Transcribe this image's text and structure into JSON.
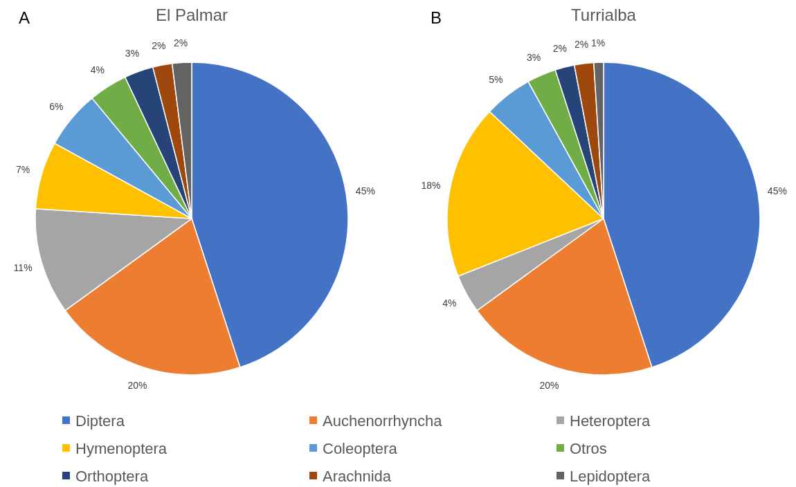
{
  "chart_data": [
    {
      "type": "pie",
      "title": "El Palmar",
      "annotations": [
        "A"
      ],
      "legend": "bottom",
      "categories": [
        "Diptera",
        "Auchenorrhyncha",
        "Heteroptera",
        "Hymenoptera",
        "Coleoptera",
        "Otros",
        "Orthoptera",
        "Arachnida",
        "Lepidoptera"
      ],
      "values": [
        45,
        20,
        11,
        7,
        6,
        4,
        3,
        2,
        2
      ],
      "value_labels": [
        "45%",
        "20%",
        "11%",
        "7%",
        "6%",
        "4%",
        "3%",
        "2%",
        "2%"
      ],
      "colors": [
        "#4472c4",
        "#ed7d31",
        "#a5a5a5",
        "#ffc000",
        "#5b9bd5",
        "#70ad47",
        "#264478",
        "#9e480e",
        "#636363"
      ]
    },
    {
      "type": "pie",
      "title": "Turrialba",
      "annotations": [
        "B"
      ],
      "categories": [
        null,
        null,
        null,
        null,
        null,
        null,
        null,
        null,
        null
      ],
      "values": [
        45,
        20,
        4,
        18,
        5,
        3,
        2,
        2,
        1
      ],
      "value_labels": [
        "45%",
        "20%",
        "4%",
        "18%",
        "5%",
        "3%",
        "2%",
        "2%",
        "1%"
      ],
      "colors": [
        "#4472c4",
        "#ed7d31",
        "#a5a5a5",
        "#ffc000",
        "#5b9bd5",
        "#70ad47",
        "#264478",
        "#9e480e",
        "#636363"
      ]
    }
  ]
}
